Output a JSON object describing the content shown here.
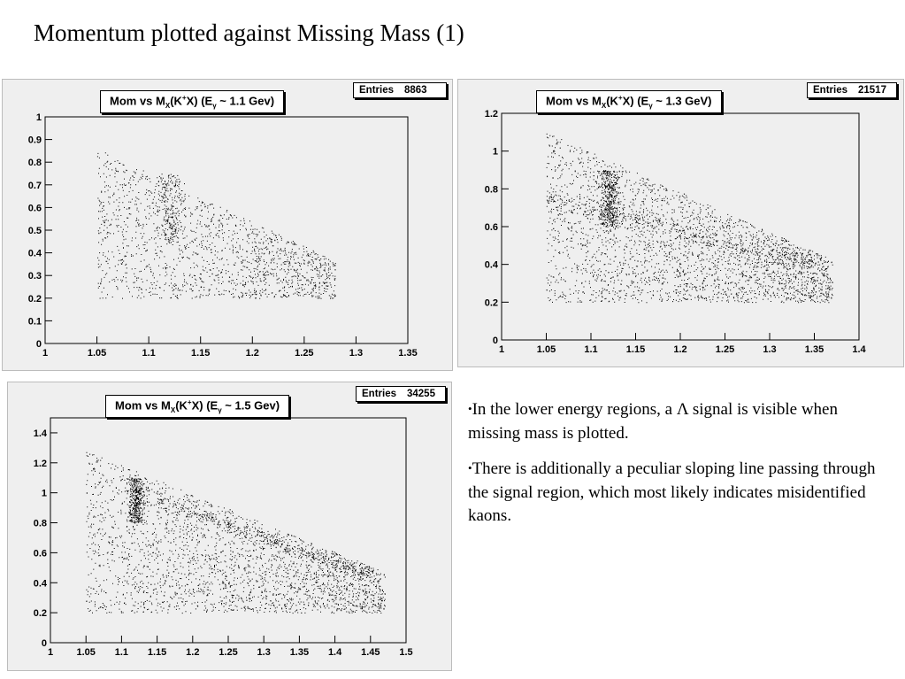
{
  "slide": {
    "title": "Momentum plotted against Missing Mass (1)"
  },
  "bullets": [
    "In the lower energy regions, a Λ signal is visible when missing mass is plotted.",
    "There is additionally a peculiar sloping line passing through the signal region, which most likely indicates misidentified kaons."
  ],
  "bullet_glyph": "•",
  "plots": [
    {
      "title_main": "Mom vs M",
      "title_sub": "X",
      "title_mid": "(K",
      "title_sup": "+",
      "title_after": "X)  (E",
      "title_sub2": "γ",
      "title_end": " ~ 1.1 Gev)",
      "stats_label": "Entries",
      "stats_value": "8863"
    },
    {
      "title_main": "Mom vs M",
      "title_sub": "X",
      "title_mid": "(K",
      "title_sup": "+",
      "title_after": "X)    (E",
      "title_sub2": "γ",
      "title_end": " ~ 1.3 GeV)",
      "stats_label": "Entries",
      "stats_value": "21517"
    },
    {
      "title_main": "Mom vs M",
      "title_sub": "X",
      "title_mid": "(K",
      "title_sup": "+",
      "title_after": "X)  (E",
      "title_sub2": "γ",
      "title_end": " ~ 1.5 Gev)",
      "stats_label": "Entries",
      "stats_value": "34255"
    }
  ],
  "chart_data": [
    {
      "type": "scatter",
      "title": "Mom vs MX(K+X)  (Eγ ~ 1.1 Gev)",
      "entries": 8863,
      "xlim": [
        1.0,
        1.35
      ],
      "ylim": [
        0,
        1.0
      ],
      "x_ticks": [
        "1",
        "1.05",
        "1.1",
        "1.15",
        "1.2",
        "1.25",
        "1.3",
        "1.35"
      ],
      "y_ticks": [
        "0",
        "0.1",
        "0.2",
        "0.3",
        "0.4",
        "0.5",
        "0.6",
        "0.7",
        "0.8",
        "0.9",
        "1"
      ],
      "x_range_data": [
        1.05,
        1.28
      ],
      "y_range_data": [
        0.2,
        0.86
      ],
      "signal_peak": {
        "x": 1.12,
        "y": [
          0.45,
          0.75
        ]
      },
      "grid": false
    },
    {
      "type": "scatter",
      "title": "Mom vs MX(K+X)    (Eγ ~ 1.3 GeV)",
      "entries": 21517,
      "xlim": [
        1.0,
        1.4
      ],
      "ylim": [
        0,
        1.2
      ],
      "x_ticks": [
        "1",
        "1.05",
        "1.1",
        "1.15",
        "1.2",
        "1.25",
        "1.3",
        "1.35",
        "1.4"
      ],
      "y_ticks": [
        "0",
        "0.2",
        "0.4",
        "0.6",
        "0.8",
        "1",
        "1.2"
      ],
      "x_range_data": [
        1.05,
        1.37
      ],
      "y_range_data": [
        0.2,
        1.1
      ],
      "signal_peak": {
        "x": 1.12,
        "y": [
          0.6,
          0.9
        ]
      },
      "sloping_line": {
        "x": [
          1.05,
          1.35
        ],
        "y": [
          0.75,
          0.4
        ]
      },
      "grid": false
    },
    {
      "type": "scatter",
      "title": "Mom vs MX(K+X)  (Eγ ~ 1.5 Gev)",
      "entries": 34255,
      "xlim": [
        1.0,
        1.5
      ],
      "ylim": [
        0,
        1.5
      ],
      "x_ticks": [
        "1",
        "1.05",
        "1.1",
        "1.15",
        "1.2",
        "1.25",
        "1.3",
        "1.35",
        "1.4",
        "1.45",
        "1.5"
      ],
      "y_ticks": [
        "0",
        "0.2",
        "0.4",
        "0.6",
        "0.8",
        "1",
        "1.2",
        "1.4"
      ],
      "x_range_data": [
        1.05,
        1.47
      ],
      "y_range_data": [
        0.2,
        1.28
      ],
      "signal_peak": {
        "x": 1.12,
        "y": [
          0.8,
          1.1
        ]
      },
      "sloping_line": {
        "x": [
          1.15,
          1.45
        ],
        "y": [
          0.95,
          0.45
        ]
      },
      "grid": false
    }
  ]
}
